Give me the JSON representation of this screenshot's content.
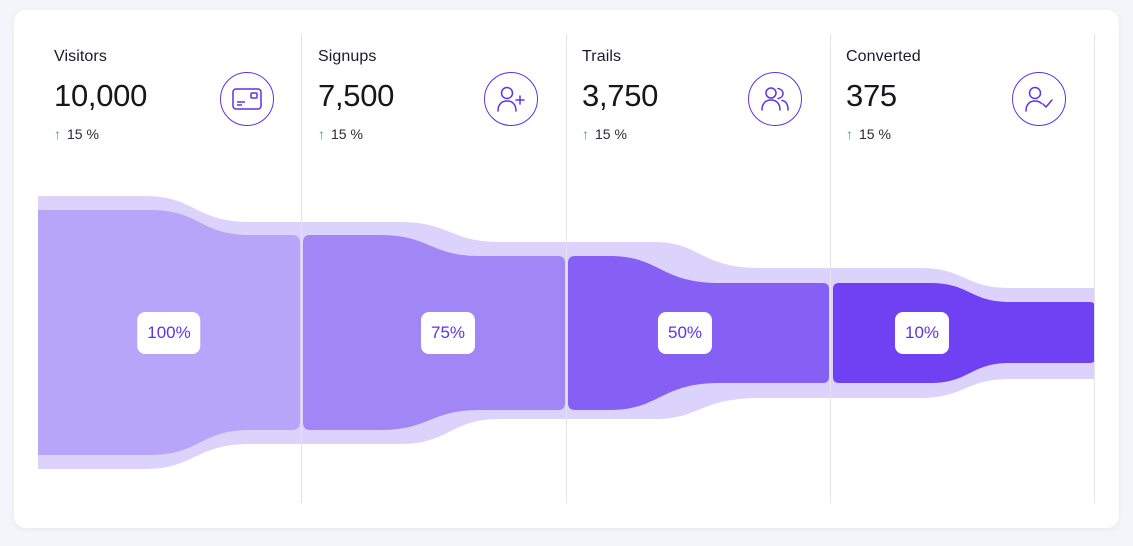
{
  "stages": [
    {
      "label": "Visitors",
      "value": "10,000",
      "change": "15 %",
      "icon": "card-icon"
    },
    {
      "label": "Signups",
      "value": "7,500",
      "change": "15 %",
      "icon": "user-plus-icon"
    },
    {
      "label": "Trails",
      "value": "3,750",
      "change": "15 %",
      "icon": "users-icon"
    },
    {
      "label": "Converted",
      "value": "375",
      "change": "15 %",
      "icon": "user-check-icon"
    }
  ],
  "colors": {
    "accent": "#5b34e6",
    "outer_band": "#dcd3fc",
    "stage_fills": [
      "#b6a5f8",
      "#a186f6",
      "#8660f4",
      "#7040f3"
    ],
    "positive": "#2bb673"
  },
  "chart_data": {
    "type": "funnel",
    "categories": [
      "Visitors",
      "Signups",
      "Trails",
      "Converted"
    ],
    "values": [
      100,
      75,
      50,
      10
    ],
    "labels": [
      "100%",
      "75%",
      "50%",
      "10%"
    ]
  }
}
